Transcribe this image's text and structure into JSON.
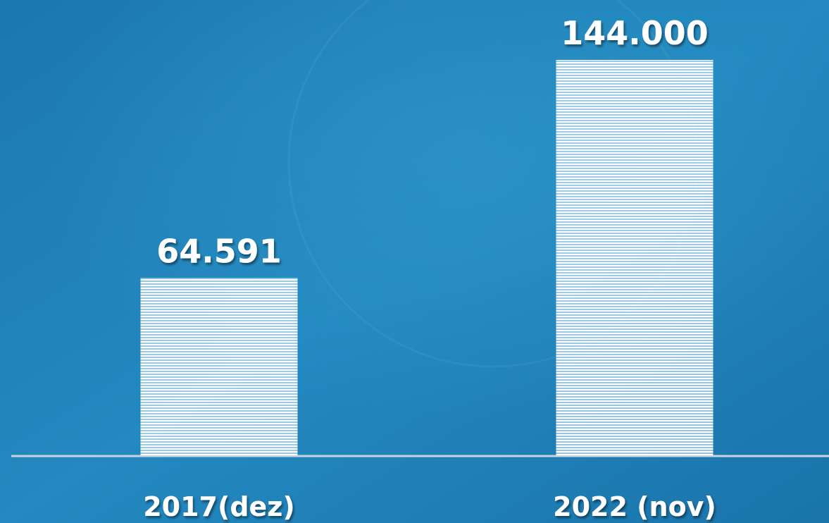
{
  "chart_data": {
    "type": "bar",
    "categories": [
      "2017(dez)",
      "2022 (nov)"
    ],
    "values": [
      64591,
      144000
    ],
    "value_labels": [
      "64.591",
      "144.000"
    ],
    "color": "#ffffff"
  }
}
